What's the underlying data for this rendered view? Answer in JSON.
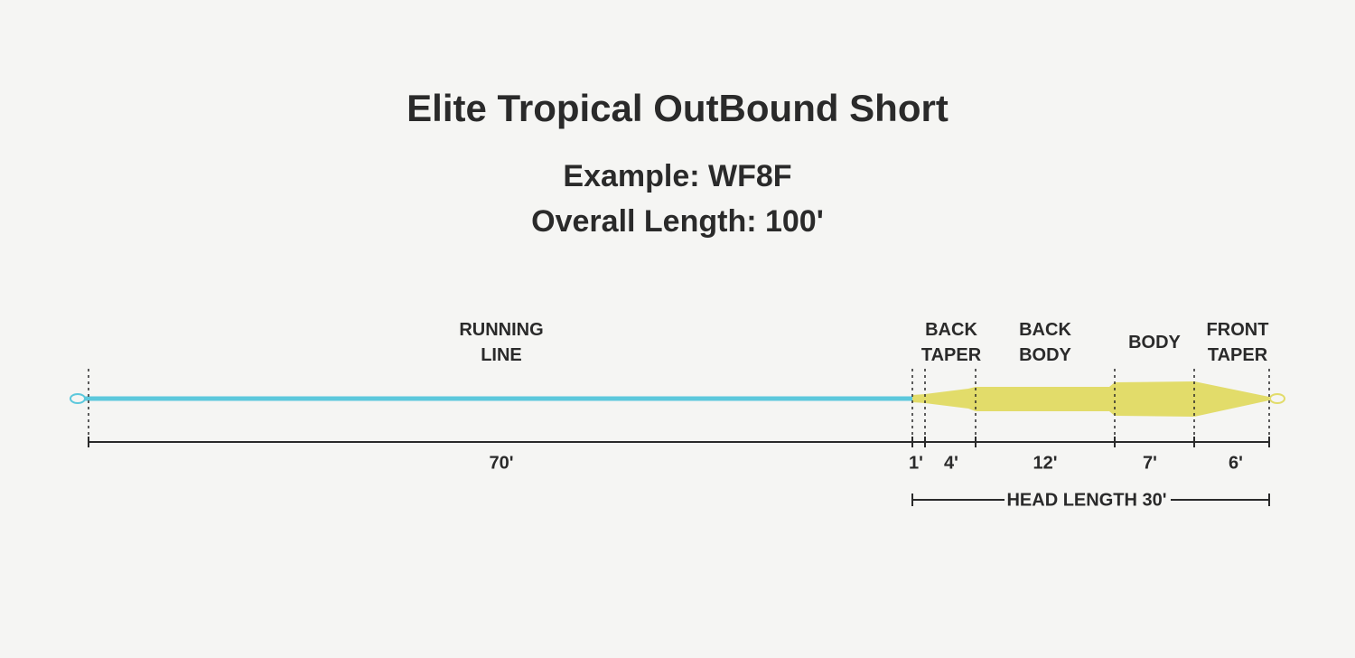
{
  "header": {
    "title": "Elite Tropical OutBound Short",
    "subtitle": [
      "Example: WF8F",
      "Overall Length: 100'"
    ]
  },
  "segments": [
    {
      "label": [
        "RUNNING",
        "LINE"
      ],
      "length": "70'"
    },
    {
      "length": "1'"
    },
    {
      "label": [
        "BACK",
        "TAPER"
      ],
      "length": "4'"
    },
    {
      "label": [
        "BACK",
        "BODY"
      ],
      "length": "12'"
    },
    {
      "label": [
        "BODY"
      ],
      "length": "7'"
    },
    {
      "label": [
        "FRONT",
        "TAPER"
      ],
      "length": "6'"
    }
  ],
  "head_length": "HEAD LENGTH 30'"
}
